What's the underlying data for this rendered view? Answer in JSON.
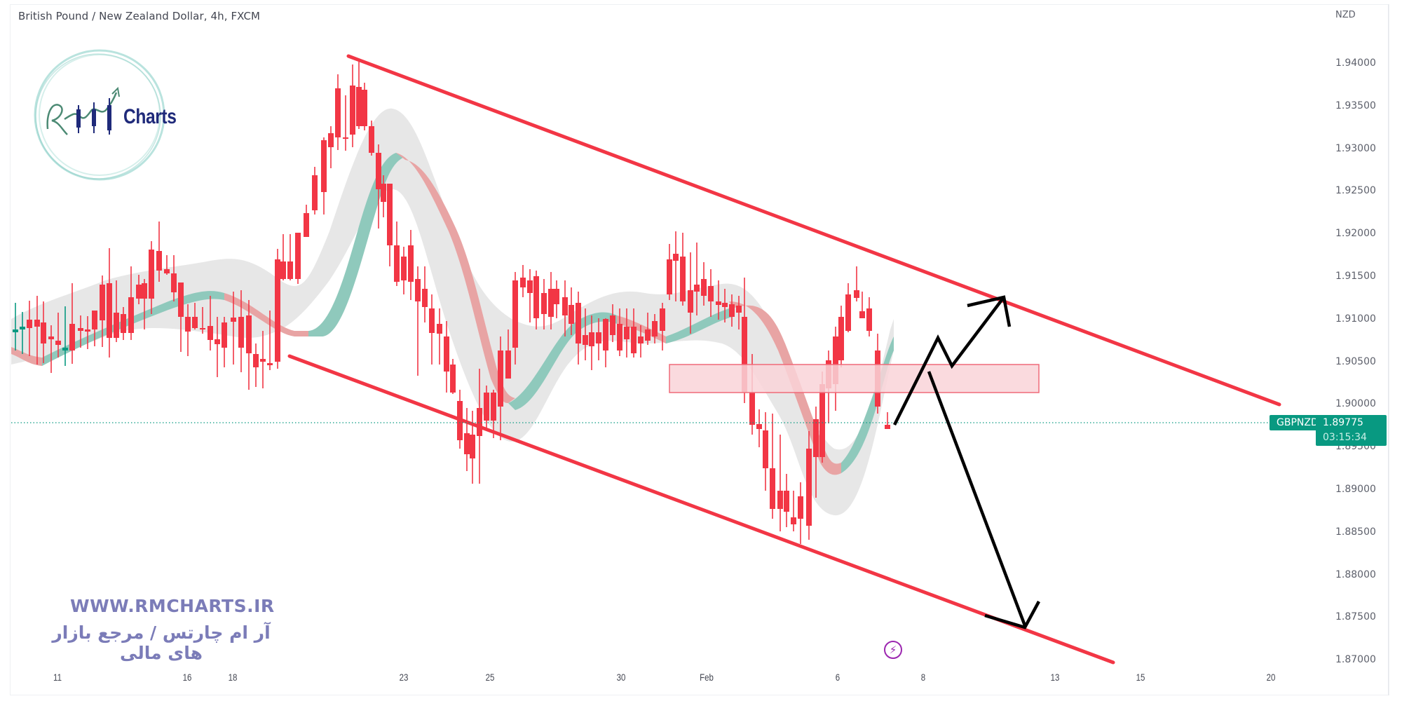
{
  "header": {
    "title": "British Pound / New Zealand Dollar, 4h, FXCM"
  },
  "price_axis": {
    "currency": "NZD",
    "ticks": [
      "1.94000",
      "1.93500",
      "1.93000",
      "1.92500",
      "1.92000",
      "1.91500",
      "1.91000",
      "1.90500",
      "1.90000",
      "1.89500",
      "1.89000",
      "1.88500",
      "1.88000",
      "1.87500",
      "1.87000"
    ]
  },
  "time_axis": {
    "ticks": [
      "11",
      "16",
      "18",
      "23",
      "25",
      "30",
      "Feb",
      "6",
      "8",
      "13",
      "15",
      "20"
    ]
  },
  "last_price": {
    "symbol": "GBPNZD",
    "price": "1.89775",
    "countdown": "03:15:34",
    "color": "#089981"
  },
  "watermark": {
    "logo_text": "Charts",
    "url": "WWW.RMCHARTS.IR",
    "tagline_fa": "آر ام چارتس / مرجع بازار های مالی"
  },
  "icons": {
    "event": "⚡"
  },
  "colors": {
    "up": "#089981",
    "down": "#f23645",
    "channel": "#f23645",
    "zone_fill": "#f9d4d8",
    "zone_border": "#f06a78",
    "band": "#e3e3e3",
    "arrow": "#000000"
  },
  "chart_data": {
    "type": "candlestick",
    "title": "British Pound / New Zealand Dollar, 4h, FXCM",
    "symbol": "GBPNZD",
    "timeframe": "4h",
    "ylabel": "NZD",
    "ylim": [
      1.8695,
      1.9445
    ],
    "y_ticks": [
      1.94,
      1.935,
      1.93,
      1.925,
      1.92,
      1.915,
      1.91,
      1.905,
      1.9,
      1.895,
      1.89,
      1.885,
      1.88,
      1.875,
      1.87
    ],
    "x_ticks": [
      "11",
      "16",
      "18",
      "23",
      "25",
      "30",
      "Feb",
      "6",
      "8",
      "13",
      "15",
      "20"
    ],
    "last_price": 1.89775,
    "price_path_approx": [
      {
        "date": "11",
        "price": 1.9085
      },
      {
        "date": "16",
        "price": 1.911
      },
      {
        "date": "18",
        "price": 1.9075
      },
      {
        "date": "20",
        "price": 1.94
      },
      {
        "date": "23",
        "price": 1.909
      },
      {
        "date": "24",
        "price": 1.894
      },
      {
        "date": "25",
        "price": 1.9
      },
      {
        "date": "26",
        "price": 1.9145
      },
      {
        "date": "30",
        "price": 1.908
      },
      {
        "date": "31",
        "price": 1.918
      },
      {
        "date": "Feb",
        "price": 1.911
      },
      {
        "date": "2",
        "price": 1.899
      },
      {
        "date": "3",
        "price": 1.885
      },
      {
        "date": "5",
        "price": 1.9
      },
      {
        "date": "6",
        "price": 1.914
      },
      {
        "date": "7",
        "price": 1.89775
      }
    ],
    "annotations": [
      {
        "type": "trendline",
        "name": "channel-upper",
        "from": {
          "date": "20",
          "price": 1.9408
        },
        "to": {
          "date": "20 (proj)",
          "price": 1.9
        }
      },
      {
        "type": "trendline",
        "name": "channel-lower",
        "from": {
          "date": "18",
          "price": 1.9055
        },
        "to": {
          "date": "15 (proj)",
          "price": 1.8697
        }
      },
      {
        "type": "zone",
        "name": "resistance-zone",
        "price_top": 1.9045,
        "price_bottom": 1.9012
      },
      {
        "type": "arrow-path",
        "name": "bullish-scenario",
        "target_price": 1.912
      },
      {
        "type": "arrow",
        "name": "bearish-scenario",
        "target_price": 1.874
      }
    ],
    "indicator": "moving-average ribbon with envelope band",
    "grid": false,
    "legend": "none"
  }
}
